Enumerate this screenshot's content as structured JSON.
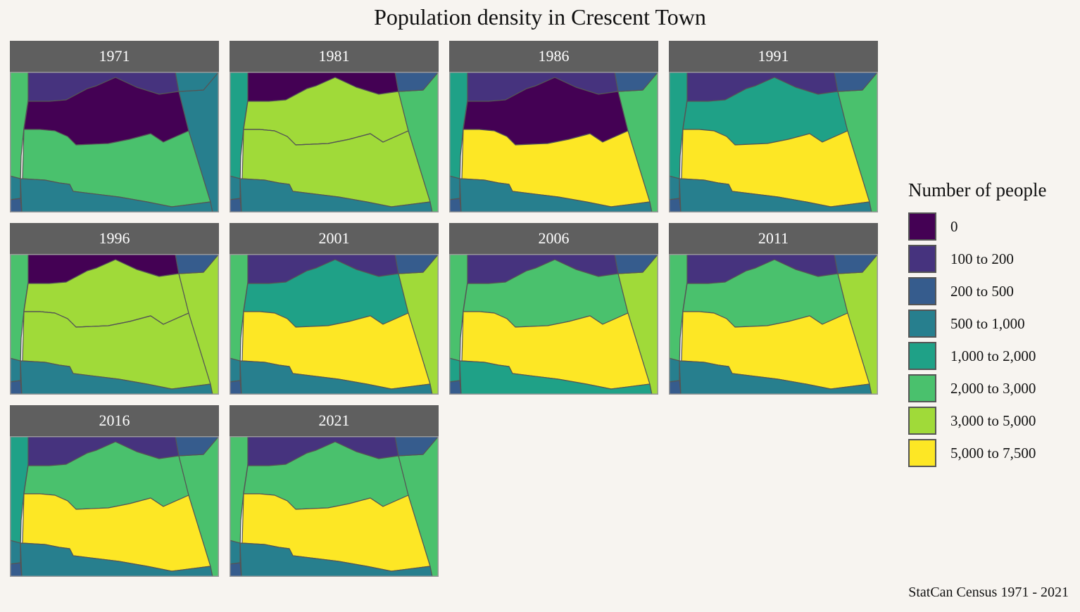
{
  "title": "Population density in Crescent Town",
  "caption": "StatCan Census 1971 - 2021",
  "legend": {
    "title": "Number of people",
    "items": [
      {
        "label": "0",
        "color": "#440154"
      },
      {
        "label": "100 to 200",
        "color": "#46337e"
      },
      {
        "label": "200 to 500",
        "color": "#365c8d"
      },
      {
        "label": "500 to 1,000",
        "color": "#277f8e"
      },
      {
        "label": "1,000 to 2,000",
        "color": "#1fa187"
      },
      {
        "label": "2,000 to 3,000",
        "color": "#4ac16d"
      },
      {
        "label": "3,000 to 5,000",
        "color": "#a0da39"
      },
      {
        "label": "5,000 to 7,500",
        "color": "#fde725"
      }
    ]
  },
  "map_data": {
    "regions": [
      "left_strip",
      "bottom_left",
      "bottom_corner",
      "north",
      "middle",
      "south",
      "bottom",
      "east",
      "corner_ne"
    ],
    "panels": [
      {
        "year": "1971",
        "fill": {
          "left_strip": "2,000 to 3,000",
          "bottom_left": "500 to 1,000",
          "bottom_corner": "200 to 500",
          "north": "100 to 200",
          "middle": "0",
          "south": "2,000 to 3,000",
          "bottom": "500 to 1,000",
          "east": "500 to 1,000",
          "corner_ne": "500 to 1,000"
        }
      },
      {
        "year": "1981",
        "fill": {
          "left_strip": "1,000 to 2,000",
          "bottom_left": "500 to 1,000",
          "bottom_corner": "200 to 500",
          "north": "0",
          "middle": "3,000 to 5,000",
          "south": "3,000 to 5,000",
          "bottom": "500 to 1,000",
          "east": "2,000 to 3,000",
          "corner_ne": "200 to 500"
        }
      },
      {
        "year": "1986",
        "fill": {
          "left_strip": "1,000 to 2,000",
          "bottom_left": "500 to 1,000",
          "bottom_corner": "200 to 500",
          "north": "100 to 200",
          "middle": "0",
          "south": "5,000 to 7,500",
          "bottom": "500 to 1,000",
          "east": "2,000 to 3,000",
          "corner_ne": "200 to 500"
        }
      },
      {
        "year": "1991",
        "fill": {
          "left_strip": "1,000 to 2,000",
          "bottom_left": "500 to 1,000",
          "bottom_corner": "200 to 500",
          "north": "100 to 200",
          "middle": "1,000 to 2,000",
          "south": "5,000 to 7,500",
          "bottom": "500 to 1,000",
          "east": "2,000 to 3,000",
          "corner_ne": "200 to 500"
        }
      },
      {
        "year": "1996",
        "fill": {
          "left_strip": "2,000 to 3,000",
          "bottom_left": "500 to 1,000",
          "bottom_corner": "200 to 500",
          "north": "0",
          "middle": "3,000 to 5,000",
          "south": "3,000 to 5,000",
          "bottom": "500 to 1,000",
          "east": "3,000 to 5,000",
          "corner_ne": "200 to 500"
        }
      },
      {
        "year": "2001",
        "fill": {
          "left_strip": "2,000 to 3,000",
          "bottom_left": "500 to 1,000",
          "bottom_corner": "200 to 500",
          "north": "100 to 200",
          "middle": "1,000 to 2,000",
          "south": "5,000 to 7,500",
          "bottom": "500 to 1,000",
          "east": "3,000 to 5,000",
          "corner_ne": "200 to 500"
        }
      },
      {
        "year": "2006",
        "fill": {
          "left_strip": "2,000 to 3,000",
          "bottom_left": "1,000 to 2,000",
          "bottom_corner": "200 to 500",
          "north": "100 to 200",
          "middle": "2,000 to 3,000",
          "south": "5,000 to 7,500",
          "bottom": "1,000 to 2,000",
          "east": "3,000 to 5,000",
          "corner_ne": "200 to 500"
        }
      },
      {
        "year": "2011",
        "fill": {
          "left_strip": "2,000 to 3,000",
          "bottom_left": "500 to 1,000",
          "bottom_corner": "200 to 500",
          "north": "100 to 200",
          "middle": "2,000 to 3,000",
          "south": "5,000 to 7,500",
          "bottom": "500 to 1,000",
          "east": "3,000 to 5,000",
          "corner_ne": "200 to 500"
        }
      },
      {
        "year": "2016",
        "fill": {
          "left_strip": "1,000 to 2,000",
          "bottom_left": "500 to 1,000",
          "bottom_corner": "200 to 500",
          "north": "100 to 200",
          "middle": "2,000 to 3,000",
          "south": "5,000 to 7,500",
          "bottom": "500 to 1,000",
          "east": "2,000 to 3,000",
          "corner_ne": "200 to 500"
        }
      },
      {
        "year": "2021",
        "fill": {
          "left_strip": "2,000 to 3,000",
          "bottom_left": "500 to 1,000",
          "bottom_corner": "200 to 500",
          "north": "100 to 200",
          "middle": "2,000 to 3,000",
          "south": "5,000 to 7,500",
          "bottom": "500 to 1,000",
          "east": "2,000 to 3,000",
          "corner_ne": "200 to 500"
        }
      }
    ]
  }
}
